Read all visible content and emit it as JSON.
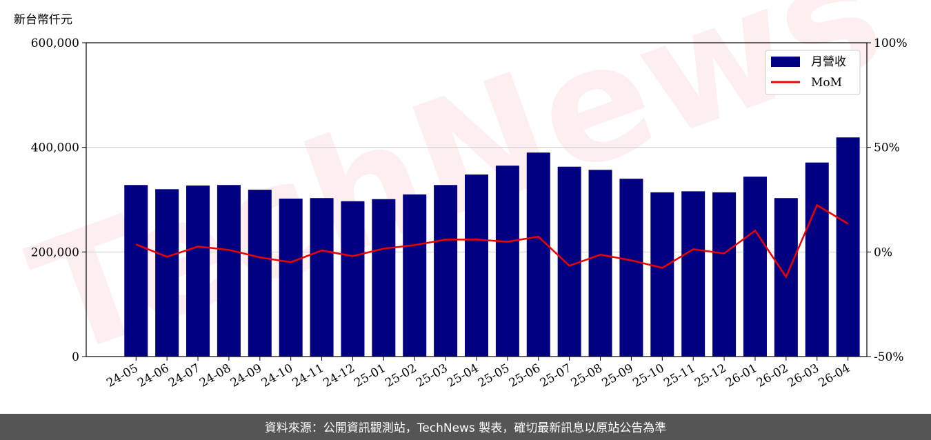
{
  "chart_data": {
    "type": "bar_line",
    "y_label": "新台幣仟元",
    "watermark": "TechNews",
    "categories": [
      "24-05",
      "24-06",
      "24-07",
      "24-08",
      "24-09",
      "24-10",
      "24-11",
      "24-12",
      "25-01",
      "25-02",
      "25-03",
      "25-04",
      "25-05",
      "25-06",
      "25-07",
      "25-08",
      "25-09",
      "25-10",
      "25-11",
      "25-12",
      "26-01",
      "26-02",
      "26-03",
      "26-04"
    ],
    "series": [
      {
        "name": "月營收",
        "type": "bar",
        "color": "#000080",
        "values": [
          328000,
          320000,
          327000,
          328000,
          319000,
          302000,
          303000,
          297000,
          301000,
          310000,
          328000,
          348000,
          365000,
          390000,
          363000,
          357000,
          340000,
          314000,
          316000,
          314000,
          344000,
          303000,
          371000,
          419000
        ]
      },
      {
        "name": "MoM",
        "type": "line",
        "axis": "y2",
        "color": "#ee0000",
        "values": [
          3.6,
          -2.3,
          2.6,
          1.0,
          -2.6,
          -4.9,
          0.7,
          -2.0,
          1.6,
          3.3,
          5.9,
          5.9,
          4.9,
          7.3,
          -6.6,
          -1.3,
          -4.0,
          -7.6,
          1.3,
          -0.7,
          10.2,
          -11.9,
          22.4,
          13.5
        ]
      }
    ],
    "ylim": [
      0,
      600000
    ],
    "yticks": [
      0,
      {
        "value": 200000,
        "label": "200,000"
      },
      {
        "value": 400000,
        "label": "400,000"
      },
      {
        "value": 600000,
        "label": "600,000"
      }
    ],
    "y2lim": [
      -50,
      100
    ],
    "y2ticks": [
      {
        "value": -50,
        "label": "-50%"
      },
      {
        "value": 0,
        "label": "0%"
      },
      {
        "value": 50,
        "label": "50%"
      },
      {
        "value": 100,
        "label": "100%"
      }
    ],
    "grid": true,
    "legend": "upper right"
  },
  "footer": "資料來源：公開資訊觀測站，TechNews 製表，確切最新訊息以原站公告為準"
}
